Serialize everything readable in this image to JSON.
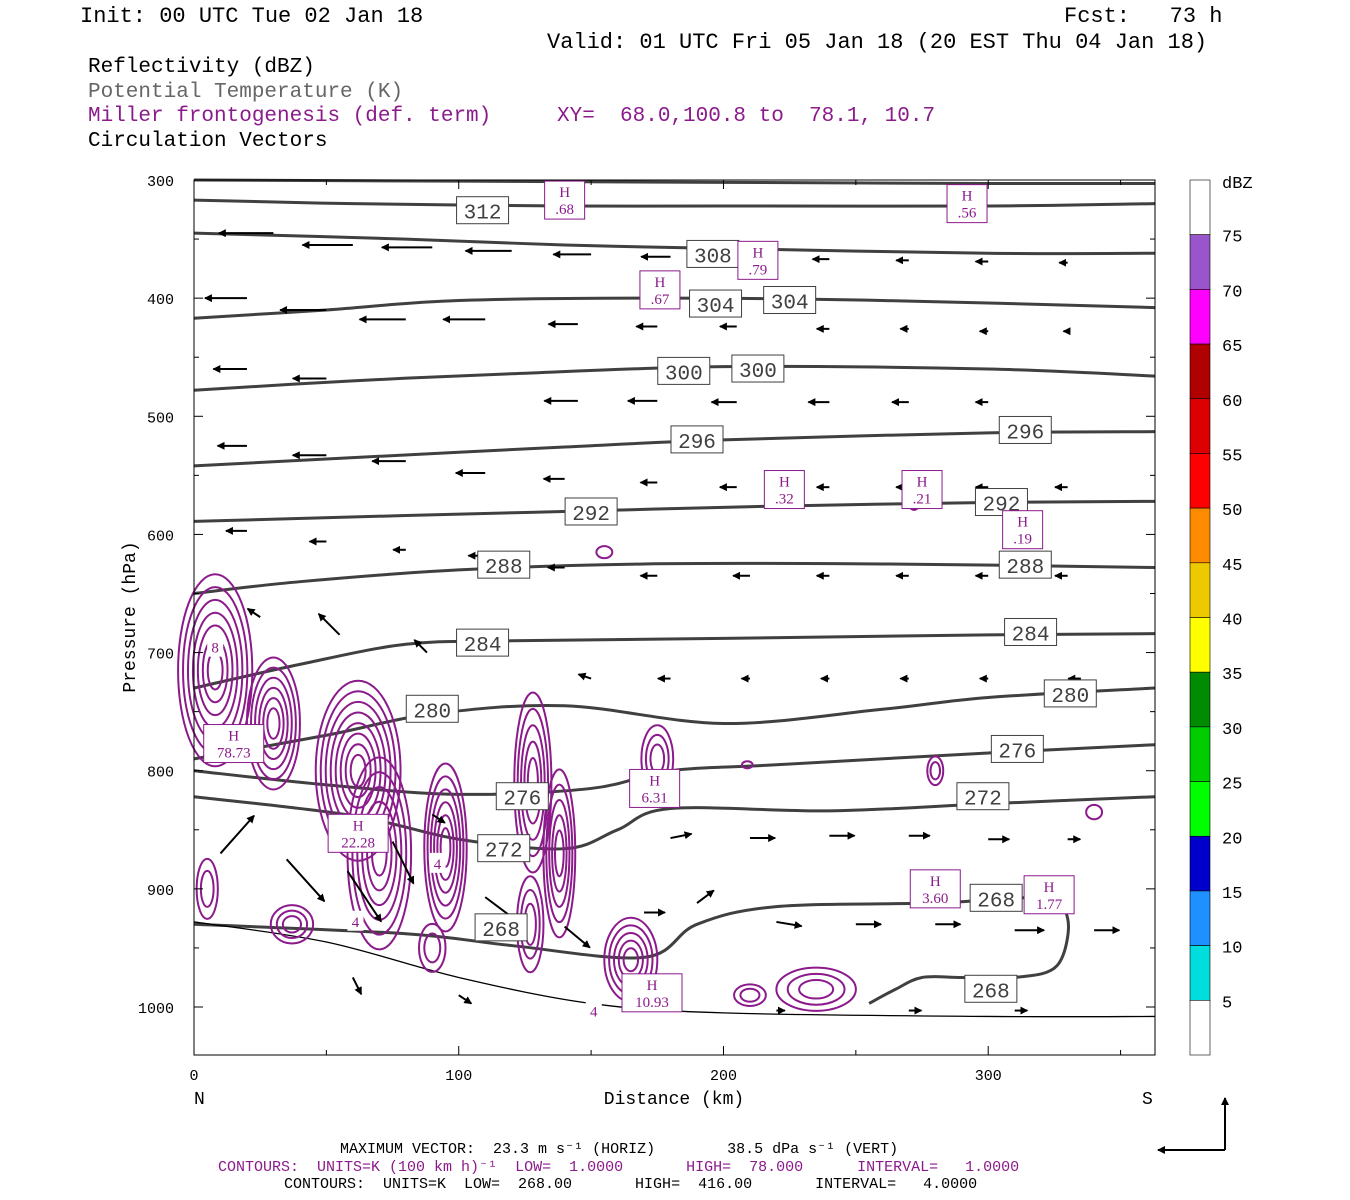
{
  "header": {
    "init": "Init: 00 UTC Tue 02 Jan 18",
    "fcst": "Fcst:   73 h",
    "valid": "Valid: 01 UTC Fri 05 Jan 18 (20 EST Thu 04 Jan 18)",
    "field1": "Reflectivity (dBZ)",
    "field2": "Potential Temperature (K)",
    "field3": "Miller frontogenesis (def. term)",
    "xy": "XY=  68.0,100.8 to  78.1, 10.7",
    "field4": "Circulation Vectors"
  },
  "axes": {
    "ylabel": "Pressure (hPa)",
    "xlabel": "Distance (km)",
    "left_end": "N",
    "right_end": "S",
    "yticks": [
      300,
      400,
      500,
      600,
      700,
      800,
      900,
      1000
    ],
    "xticks": [
      0,
      100,
      200,
      300
    ]
  },
  "colorbar": {
    "title": "dBZ",
    "labels": [
      "5",
      "10",
      "15",
      "20",
      "25",
      "30",
      "35",
      "40",
      "45",
      "50",
      "55",
      "60",
      "65",
      "70",
      "75"
    ],
    "colors": [
      "#ffffff",
      "#00dddd",
      "#1e90ff",
      "#0000cd",
      "#00ff00",
      "#00cd00",
      "#008b00",
      "#ffff00",
      "#eec900",
      "#ff8c00",
      "#ff0000",
      "#dd0000",
      "#b00000",
      "#ff00ff",
      "#9955cc",
      "#ffffff"
    ]
  },
  "footer": {
    "line1": "MAXIMUM VECTOR:  23.3 m s⁻¹ (HORIZ)        38.5 dPa s⁻¹ (VERT)",
    "line2": "CONTOURS:  UNITS=K (100 km h)⁻¹  LOW=  1.0000       HIGH=  78.000      INTERVAL=   1.0000",
    "line3": "CONTOURS:  UNITS=K  LOW=  268.00       HIGH=  416.00       INTERVAL=   4.0000"
  },
  "chart_data": {
    "type": "cross-section",
    "xlim": [
      0,
      363
    ],
    "ylim": [
      1040,
      300
    ],
    "theta_contours": [
      {
        "label": "312",
        "points": [
          [
            0,
            300
          ],
          [
            100,
            301
          ],
          [
            200,
            302
          ],
          [
            300,
            303
          ],
          [
            363,
            303
          ]
        ],
        "label_at": [
          109,
          326
        ]
      },
      {
        "label": "312",
        "points": [
          [
            0,
            317
          ],
          [
            60,
            320
          ],
          [
            140,
            322
          ],
          [
            200,
            322
          ],
          [
            300,
            322
          ],
          [
            363,
            320
          ]
        ],
        "label_at": null
      },
      {
        "label": "308",
        "points": [
          [
            0,
            345
          ],
          [
            80,
            350
          ],
          [
            140,
            355
          ],
          [
            200,
            358
          ],
          [
            300,
            362
          ],
          [
            363,
            362
          ]
        ],
        "label_at": [
          196,
          363
        ]
      },
      {
        "label": "304",
        "points": [
          [
            0,
            417
          ],
          [
            50,
            410
          ],
          [
            100,
            402
          ],
          [
            180,
            400
          ],
          [
            260,
            402
          ],
          [
            363,
            408
          ]
        ],
        "label_at": [
          197,
          405
        ]
      },
      {
        "label": "304",
        "points": [],
        "label_at": [
          225,
          402
        ]
      },
      {
        "label": "300",
        "points": [
          [
            0,
            478
          ],
          [
            60,
            470
          ],
          [
            120,
            464
          ],
          [
            200,
            458
          ],
          [
            300,
            460
          ],
          [
            363,
            466
          ]
        ],
        "label_at": [
          185,
          462
        ]
      },
      {
        "label": "300",
        "points": [],
        "label_at": [
          213,
          460
        ]
      },
      {
        "label": "296",
        "points": [
          [
            0,
            542
          ],
          [
            60,
            535
          ],
          [
            140,
            526
          ],
          [
            200,
            520
          ],
          [
            300,
            514
          ],
          [
            363,
            513
          ]
        ],
        "label_at": [
          190,
          520
        ]
      },
      {
        "label": "296",
        "points": [],
        "label_at": [
          314,
          512
        ]
      },
      {
        "label": "292",
        "points": [
          [
            0,
            589
          ],
          [
            80,
            584
          ],
          [
            150,
            580
          ],
          [
            220,
            576
          ],
          [
            300,
            573
          ],
          [
            363,
            572
          ]
        ],
        "label_at": [
          150,
          581
        ]
      },
      {
        "label": "292",
        "points": [],
        "label_at": [
          305,
          573
        ]
      },
      {
        "label": "288",
        "points": [
          [
            0,
            650
          ],
          [
            40,
            640
          ],
          [
            100,
            630
          ],
          [
            170,
            625
          ],
          [
            260,
            625
          ],
          [
            363,
            628
          ]
        ],
        "label_at": [
          117,
          626
        ]
      },
      {
        "label": "288",
        "points": [],
        "label_at": [
          314,
          626
        ]
      },
      {
        "label": "284",
        "points": [
          [
            0,
            730
          ],
          [
            40,
            710
          ],
          [
            80,
            693
          ],
          [
            120,
            690
          ],
          [
            200,
            688
          ],
          [
            300,
            685
          ],
          [
            363,
            684
          ]
        ],
        "label_at": [
          109,
          692
        ]
      },
      {
        "label": "284",
        "points": [],
        "label_at": [
          316,
          683
        ]
      },
      {
        "label": "280",
        "points": [
          [
            0,
            790
          ],
          [
            50,
            770
          ],
          [
            90,
            752
          ],
          [
            140,
            745
          ],
          [
            200,
            760
          ],
          [
            260,
            748
          ],
          [
            300,
            738
          ],
          [
            363,
            730
          ]
        ],
        "label_at": [
          90,
          748
        ]
      },
      {
        "label": "280",
        "points": [],
        "label_at": [
          331,
          735
        ]
      },
      {
        "label": "276",
        "points": [
          [
            0,
            800
          ],
          [
            50,
            812
          ],
          [
            100,
            820
          ],
          [
            150,
            815
          ],
          [
            180,
            800
          ],
          [
            220,
            795
          ],
          [
            300,
            785
          ],
          [
            363,
            778
          ]
        ],
        "label_at": [
          124,
          822
        ]
      },
      {
        "label": "276",
        "points": [],
        "label_at": [
          311,
          782
        ]
      },
      {
        "label": "272",
        "points": [
          [
            0,
            822
          ],
          [
            60,
            838
          ],
          [
            100,
            858
          ],
          [
            140,
            866
          ],
          [
            160,
            850
          ],
          [
            180,
            832
          ],
          [
            240,
            834
          ],
          [
            300,
            828
          ],
          [
            363,
            822
          ]
        ],
        "label_at": [
          117,
          866
        ]
      },
      {
        "label": "272",
        "points": [],
        "label_at": [
          298,
          822
        ]
      },
      {
        "label": "268",
        "points": [
          [
            0,
            930
          ],
          [
            80,
            938
          ],
          [
            120,
            948
          ],
          [
            170,
            958
          ],
          [
            190,
            930
          ],
          [
            220,
            915
          ],
          [
            280,
            912
          ],
          [
            320,
            908
          ],
          [
            330,
            925
          ],
          [
            326,
            965
          ],
          [
            310,
            975
          ],
          [
            290,
            975
          ],
          [
            275,
            975
          ],
          [
            265,
            985
          ],
          [
            255,
            997
          ]
        ],
        "label_at": [
          116,
          933
        ]
      },
      {
        "label": "268",
        "points": [],
        "label_at": [
          303,
          908
        ]
      },
      {
        "label": "268",
        "points": [],
        "label_at": [
          301,
          985
        ]
      }
    ],
    "surface": [
      [
        0,
        928
      ],
      [
        50,
        945
      ],
      [
        100,
        975
      ],
      [
        150,
        997
      ],
      [
        200,
        1005
      ],
      [
        300,
        1008
      ],
      [
        363,
        1008
      ]
    ],
    "frontogenesis_maxima": [
      {
        "label": "H",
        "value": ".68",
        "x": 140,
        "p": 317
      },
      {
        "label": "H",
        "value": ".56",
        "x": 292,
        "p": 320
      },
      {
        "label": "H",
        "value": ".79",
        "x": 213,
        "p": 368
      },
      {
        "label": "H",
        "value": ".67",
        "x": 176,
        "p": 393
      },
      {
        "label": "H",
        "value": ".32",
        "x": 223,
        "p": 562
      },
      {
        "label": "H",
        "value": ".21",
        "x": 275,
        "p": 562
      },
      {
        "label": "H",
        "value": ".19",
        "x": 313,
        "p": 596
      },
      {
        "label": "H",
        "value": "78.73",
        "x": 15,
        "p": 777
      },
      {
        "label": "H",
        "value": "22.28",
        "x": 62,
        "p": 853
      },
      {
        "label": "H",
        "value": "6.31",
        "x": 174,
        "p": 815
      },
      {
        "label": "H",
        "value": "3.60",
        "x": 280,
        "p": 900
      },
      {
        "label": "H",
        "value": "1.77",
        "x": 323,
        "p": 905
      },
      {
        "label": "H",
        "value": "10.93",
        "x": 173,
        "p": 988
      }
    ],
    "frontogenesis_labels": [
      {
        "value": "8",
        "x": 8,
        "p": 695
      },
      {
        "value": "4",
        "x": 61,
        "p": 927
      },
      {
        "value": "4",
        "x": 92,
        "p": 878
      },
      {
        "value": "4",
        "x": 151,
        "p": 1003
      }
    ],
    "vectors": [
      {
        "x": 30,
        "p": 345,
        "u": -13,
        "w": 0
      },
      {
        "x": 60,
        "p": 355,
        "u": -12,
        "w": 0
      },
      {
        "x": 90,
        "p": 357,
        "u": -12,
        "w": 0
      },
      {
        "x": 120,
        "p": 360,
        "u": -11,
        "w": 0
      },
      {
        "x": 150,
        "p": 363,
        "u": -9,
        "w": 0
      },
      {
        "x": 180,
        "p": 365,
        "u": -7,
        "w": 0
      },
      {
        "x": 210,
        "p": 366,
        "u": -6,
        "w": 0
      },
      {
        "x": 240,
        "p": 367,
        "u": -4,
        "w": 0
      },
      {
        "x": 270,
        "p": 368,
        "u": -3,
        "w": 0
      },
      {
        "x": 300,
        "p": 369,
        "u": -3,
        "w": 0
      },
      {
        "x": 330,
        "p": 370,
        "u": -2,
        "w": 0
      },
      {
        "x": 20,
        "p": 400,
        "u": -10,
        "w": 0
      },
      {
        "x": 50,
        "p": 410,
        "u": -11,
        "w": 0
      },
      {
        "x": 80,
        "p": 418,
        "u": -11,
        "w": 0
      },
      {
        "x": 110,
        "p": 418,
        "u": -10,
        "w": 0
      },
      {
        "x": 145,
        "p": 422,
        "u": -7,
        "w": 0
      },
      {
        "x": 175,
        "p": 424,
        "u": -5,
        "w": 0
      },
      {
        "x": 205,
        "p": 424,
        "u": -4,
        "w": 0
      },
      {
        "x": 240,
        "p": 426,
        "u": -3,
        "w": 0
      },
      {
        "x": 270,
        "p": 426,
        "u": -2,
        "w": 0
      },
      {
        "x": 300,
        "p": 428,
        "u": -2,
        "w": 0
      },
      {
        "x": 330,
        "p": 428,
        "u": -1,
        "w": 0
      },
      {
        "x": 20,
        "p": 460,
        "u": -8,
        "w": 0
      },
      {
        "x": 50,
        "p": 468,
        "u": -8,
        "w": 0
      },
      {
        "x": 145,
        "p": 487,
        "u": -8,
        "w": 0
      },
      {
        "x": 175,
        "p": 487,
        "u": -7,
        "w": 0
      },
      {
        "x": 205,
        "p": 488,
        "u": -6,
        "w": 0
      },
      {
        "x": 240,
        "p": 488,
        "u": -5,
        "w": 0
      },
      {
        "x": 270,
        "p": 488,
        "u": -4,
        "w": 0
      },
      {
        "x": 300,
        "p": 488,
        "u": -3,
        "w": 0
      },
      {
        "x": 20,
        "p": 525,
        "u": -7,
        "w": 0
      },
      {
        "x": 50,
        "p": 533,
        "u": -8,
        "w": 0
      },
      {
        "x": 80,
        "p": 538,
        "u": -8,
        "w": 0
      },
      {
        "x": 110,
        "p": 548,
        "u": -7,
        "w": 0
      },
      {
        "x": 140,
        "p": 553,
        "u": -5,
        "w": 0
      },
      {
        "x": 175,
        "p": 556,
        "u": -4,
        "w": 0
      },
      {
        "x": 205,
        "p": 560,
        "u": -4,
        "w": 0
      },
      {
        "x": 240,
        "p": 560,
        "u": -3,
        "w": 0
      },
      {
        "x": 270,
        "p": 560,
        "u": -3,
        "w": 0
      },
      {
        "x": 300,
        "p": 560,
        "u": -3,
        "w": 0
      },
      {
        "x": 330,
        "p": 560,
        "u": -3,
        "w": 0
      },
      {
        "x": 20,
        "p": 597,
        "u": -5,
        "w": 0
      },
      {
        "x": 50,
        "p": 606,
        "u": -4,
        "w": 0
      },
      {
        "x": 80,
        "p": 613,
        "u": -3,
        "w": 0
      },
      {
        "x": 110,
        "p": 618,
        "u": -4,
        "w": 0
      },
      {
        "x": 140,
        "p": 628,
        "u": -4,
        "w": 0
      },
      {
        "x": 175,
        "p": 635,
        "u": -4,
        "w": 0
      },
      {
        "x": 210,
        "p": 635,
        "u": -4,
        "w": 0
      },
      {
        "x": 240,
        "p": 635,
        "u": -3,
        "w": 0
      },
      {
        "x": 270,
        "p": 635,
        "u": -3,
        "w": 0
      },
      {
        "x": 300,
        "p": 635,
        "u": -3,
        "w": 0
      },
      {
        "x": 330,
        "p": 635,
        "u": -3,
        "w": 0
      },
      {
        "x": 25,
        "p": 670,
        "u": -3,
        "w": 2
      },
      {
        "x": 55,
        "p": 685,
        "u": -5,
        "w": 5
      },
      {
        "x": 88,
        "p": 700,
        "u": -3,
        "w": 3
      },
      {
        "x": 150,
        "p": 722,
        "u": -3,
        "w": 1
      },
      {
        "x": 180,
        "p": 722,
        "u": -3,
        "w": 0
      },
      {
        "x": 210,
        "p": 722,
        "u": -2,
        "w": 0
      },
      {
        "x": 240,
        "p": 722,
        "u": -2,
        "w": 0
      },
      {
        "x": 270,
        "p": 722,
        "u": -2,
        "w": 0
      },
      {
        "x": 300,
        "p": 722,
        "u": -2,
        "w": 0
      },
      {
        "x": 335,
        "p": 722,
        "u": -3,
        "w": 0
      },
      {
        "x": 10,
        "p": 870,
        "u": 8,
        "w": 9
      },
      {
        "x": 35,
        "p": 875,
        "u": 9,
        "w": -10
      },
      {
        "x": 58,
        "p": 885,
        "u": 8,
        "w": -12
      },
      {
        "x": 75,
        "p": 860,
        "u": 5,
        "w": -10
      },
      {
        "x": 90,
        "p": 837,
        "u": 3,
        "w": -2
      },
      {
        "x": 110,
        "p": 907,
        "u": 8,
        "w": -6
      },
      {
        "x": 140,
        "p": 932,
        "u": 6,
        "w": -5
      },
      {
        "x": 170,
        "p": 920,
        "u": 5,
        "w": 0
      },
      {
        "x": 190,
        "p": 912,
        "u": 4,
        "w": 3
      },
      {
        "x": 180,
        "p": 857,
        "u": 5,
        "w": 1
      },
      {
        "x": 210,
        "p": 857,
        "u": 6,
        "w": 0
      },
      {
        "x": 240,
        "p": 855,
        "u": 6,
        "w": 0
      },
      {
        "x": 270,
        "p": 855,
        "u": 5,
        "w": 0
      },
      {
        "x": 300,
        "p": 858,
        "u": 5,
        "w": 0
      },
      {
        "x": 330,
        "p": 858,
        "u": 3,
        "w": 0
      },
      {
        "x": 220,
        "p": 928,
        "u": 6,
        "w": -1
      },
      {
        "x": 250,
        "p": 930,
        "u": 6,
        "w": 0
      },
      {
        "x": 280,
        "p": 930,
        "u": 6,
        "w": 0
      },
      {
        "x": 310,
        "p": 935,
        "u": 7,
        "w": 0
      },
      {
        "x": 340,
        "p": 935,
        "u": 6,
        "w": 0
      },
      {
        "x": 60,
        "p": 975,
        "u": 2,
        "w": -4
      },
      {
        "x": 100,
        "p": 990,
        "u": 3,
        "w": -2
      },
      {
        "x": 220,
        "p": 1003,
        "u": 2,
        "w": 0
      },
      {
        "x": 270,
        "p": 1003,
        "u": 3,
        "w": 0
      },
      {
        "x": 310,
        "p": 1003,
        "u": 3,
        "w": 0
      }
    ]
  }
}
